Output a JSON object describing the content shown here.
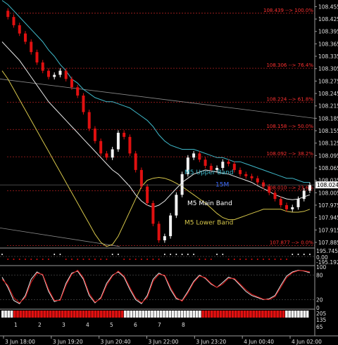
{
  "chart_data": {
    "type": "line",
    "title": "",
    "x_ticks": [
      "3 Jun 18:00",
      "3 Jun 19:20",
      "3 Jun 20:40",
      "3 Jun 22:00",
      "3 Jun 23:20",
      "4 Jun 00:40",
      "4 Jun 02:00"
    ],
    "y_ticks": [
      108.455,
      108.425,
      108.395,
      108.365,
      108.335,
      108.305,
      108.275,
      108.245,
      108.215,
      108.185,
      108.155,
      108.125,
      108.095,
      108.065,
      108.035,
      108.005,
      107.975,
      107.945,
      107.915,
      107.885
    ],
    "ylim": [
      107.873,
      108.471
    ],
    "current_price": "108.024",
    "price_badge": "108.024",
    "fib_levels": [
      {
        "price": 108.439,
        "label": "108.439 --> 100.0%"
      },
      {
        "price": 108.306,
        "label": "108.306 --> 76.4%"
      },
      {
        "price": 108.224,
        "label": "108.224 --> 61.8%"
      },
      {
        "price": 108.158,
        "label": "108.158 --> 50.0%"
      },
      {
        "price": 108.092,
        "label": "108.092 --> 38.2%"
      },
      {
        "price": 108.01,
        "label": "108.010 --> 23.6%"
      },
      {
        "price": 107.877,
        "label": "107.877 --> 0.0%"
      }
    ],
    "band_labels": {
      "upper": "M5 Upper Band",
      "main": "M5 Main Band",
      "lower": "M5 Lower Band",
      "badge": "15M"
    },
    "price_series": [
      108.445,
      108.43,
      108.41,
      108.39,
      108.37,
      108.345,
      108.32,
      108.3,
      108.285,
      108.29,
      108.3,
      108.28,
      108.26,
      108.24,
      108.2,
      108.16,
      108.13,
      108.1,
      108.09,
      108.11,
      108.15,
      108.14,
      108.1,
      108.06,
      108.02,
      107.98,
      107.93,
      107.89,
      107.9,
      107.95,
      108.0,
      108.05,
      108.09,
      108.1,
      108.085,
      108.07,
      108.06,
      108.065,
      108.08,
      108.075,
      108.06,
      108.05,
      108.045,
      108.04,
      108.03,
      108.02,
      108.005,
      107.99,
      107.975,
      107.965,
      107.97,
      107.99,
      108.01,
      108.024
    ],
    "upper_band": [
      108.47,
      108.46,
      108.445,
      108.43,
      108.415,
      108.4,
      108.385,
      108.37,
      108.35,
      108.335,
      108.315,
      108.3,
      108.28,
      108.27,
      108.255,
      108.245,
      108.235,
      108.23,
      108.225,
      108.225,
      108.22,
      108.215,
      108.21,
      108.2,
      108.19,
      108.18,
      108.165,
      108.145,
      108.13,
      108.12,
      108.115,
      108.11,
      108.11,
      108.11,
      108.105,
      108.1,
      108.095,
      108.09,
      108.09,
      108.085,
      108.08,
      108.08,
      108.075,
      108.07,
      108.065,
      108.06,
      108.055,
      108.05,
      108.045,
      108.04,
      108.04,
      108.035,
      108.03,
      108.03
    ],
    "main_band": [
      108.37,
      108.355,
      108.34,
      108.325,
      108.305,
      108.285,
      108.265,
      108.245,
      108.225,
      108.21,
      108.195,
      108.18,
      108.165,
      108.15,
      108.135,
      108.12,
      108.105,
      108.09,
      108.075,
      108.06,
      108.05,
      108.035,
      108.02,
      108.0,
      107.985,
      107.975,
      107.97,
      107.975,
      107.985,
      108.0,
      108.015,
      108.03,
      108.04,
      108.05,
      108.055,
      108.06,
      108.058,
      108.055,
      108.052,
      108.05,
      108.045,
      108.04,
      108.035,
      108.03,
      108.022,
      108.015,
      108.008,
      108.0,
      107.995,
      107.99,
      107.988,
      107.99,
      107.995,
      108.0
    ],
    "lower_band": [
      108.3,
      108.28,
      108.255,
      108.23,
      108.205,
      108.18,
      108.155,
      108.13,
      108.105,
      108.08,
      108.055,
      108.03,
      108.005,
      107.98,
      107.955,
      107.93,
      107.905,
      107.885,
      107.875,
      107.88,
      107.9,
      107.93,
      107.96,
      107.99,
      108.02,
      108.035,
      108.04,
      108.042,
      108.04,
      108.035,
      108.028,
      108.02,
      108.01,
      108.0,
      107.99,
      107.98,
      107.968,
      107.955,
      107.945,
      107.94,
      107.94,
      107.945,
      107.95,
      107.955,
      107.96,
      107.965,
      107.965,
      107.965,
      107.965,
      107.96,
      107.958,
      107.958,
      107.96,
      107.965
    ],
    "trendlines": [
      {
        "from": [
          0,
          108.28
        ],
        "to": [
          1,
          108.185
        ]
      },
      {
        "from": [
          0,
          107.92
        ],
        "to": [
          0.38,
          107.875
        ]
      }
    ],
    "cci_panel": {
      "ticks": [
        "195.7456",
        "0.00",
        "-195.1921"
      ]
    },
    "stoch_panel": {
      "ticks": [
        "100",
        "80",
        "20",
        "0"
      ],
      "main": [
        75,
        50,
        18,
        10,
        30,
        70,
        88,
        80,
        40,
        15,
        20,
        60,
        85,
        90,
        70,
        30,
        12,
        25,
        60,
        80,
        88,
        75,
        45,
        20,
        10,
        30,
        70,
        85,
        78,
        45,
        22,
        18,
        40,
        65,
        80,
        72,
        58,
        50,
        62,
        75,
        70,
        55,
        40,
        30,
        25,
        20,
        22,
        30,
        55,
        78,
        88,
        92,
        90,
        86
      ],
      "signal": [
        70,
        55,
        25,
        12,
        25,
        62,
        85,
        82,
        45,
        18,
        18,
        55,
        82,
        92,
        74,
        35,
        14,
        22,
        55,
        78,
        90,
        78,
        50,
        24,
        12,
        25,
        65,
        82,
        80,
        50,
        25,
        16,
        36,
        62,
        78,
        74,
        60,
        50,
        58,
        72,
        72,
        58,
        44,
        33,
        27,
        21,
        20,
        27,
        50,
        74,
        86,
        91,
        91,
        88
      ]
    },
    "bar_panel": {
      "labels": [
        "1",
        "2",
        "3",
        "4",
        "5",
        "6",
        "7",
        "8"
      ],
      "ticks": [
        "205",
        "135",
        "65"
      ]
    }
  }
}
